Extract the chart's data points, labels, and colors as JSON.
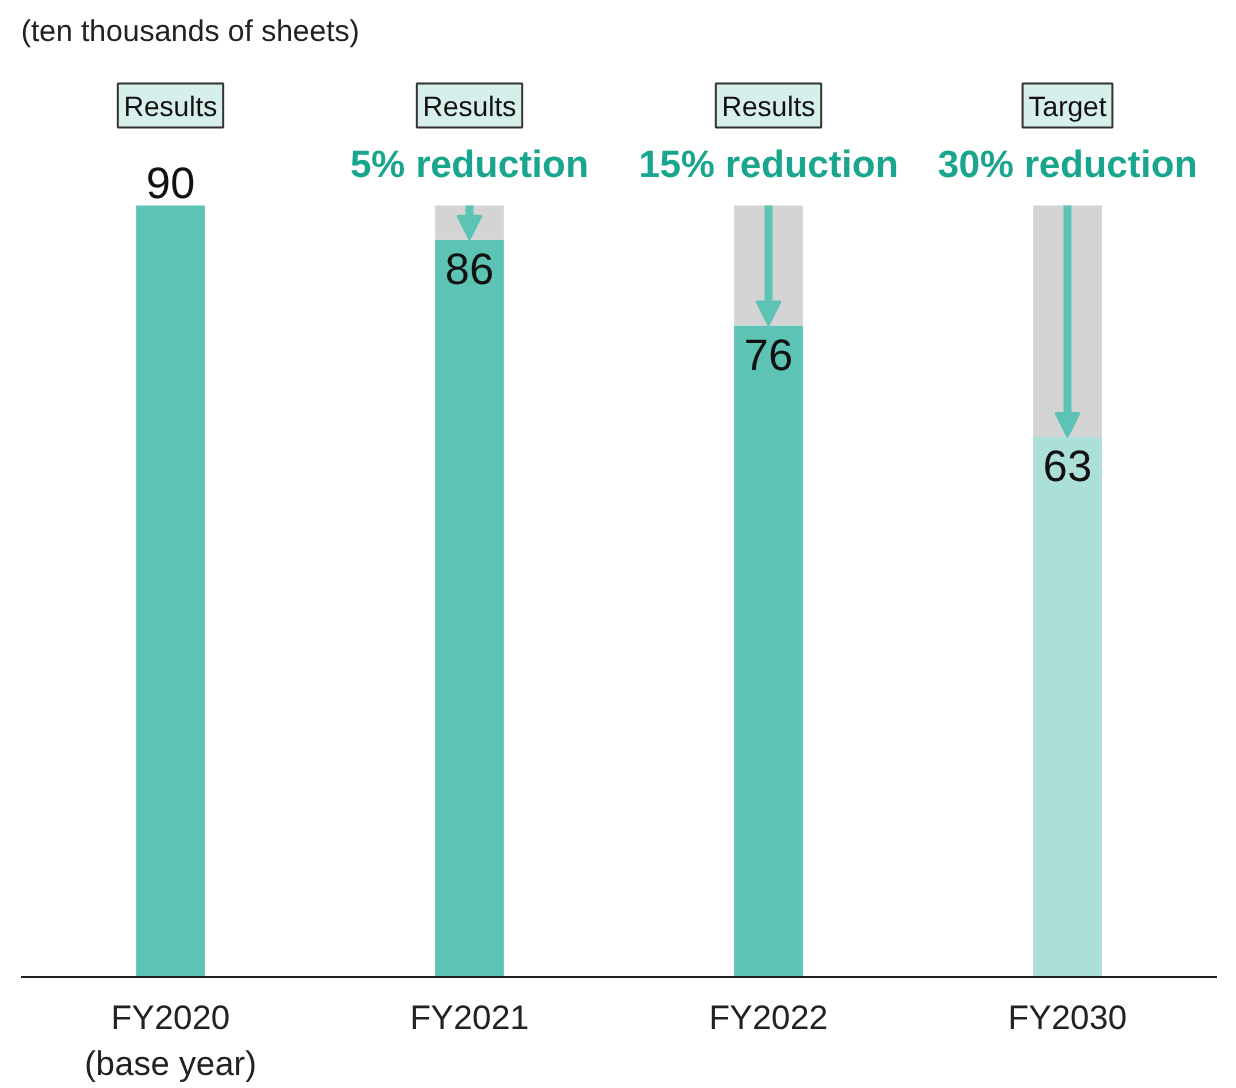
{
  "chart_data": {
    "type": "bar",
    "stacked": true,
    "categories": [
      "FY2020\n(base year)",
      "FY2021",
      "FY2022",
      "FY2030"
    ],
    "series": [
      {
        "colors": [
          "#5cc3b5",
          "#5cc3b5",
          "#5cc3b5",
          "#acdfd8"
        ],
        "values": [
          90,
          86,
          76,
          63
        ],
        "value_labels": [
          "90",
          "86",
          "76",
          "63"
        ]
      },
      {
        "color": "#d4d4d4",
        "values": [
          null,
          4,
          14,
          27
        ]
      }
    ],
    "annotations": [
      "(ten thousands of sheets)",
      {
        "text": "Results",
        "x": "FY2020\n(base year)",
        "y": 90
      },
      {
        "text": "Results",
        "x": "FY2021",
        "y": 90
      },
      {
        "text": "5% reduction",
        "x": "FY2021",
        "y": 90
      },
      {
        "text": "Results",
        "x": "FY2022",
        "y": 90
      },
      {
        "text": "15% reduction",
        "x": "FY2022",
        "y": 90
      },
      {
        "text": "Target",
        "x": "FY2030",
        "y": 90
      },
      {
        "text": "30% reduction",
        "x": "FY2030",
        "y": 90
      }
    ],
    "grid": false
  }
}
